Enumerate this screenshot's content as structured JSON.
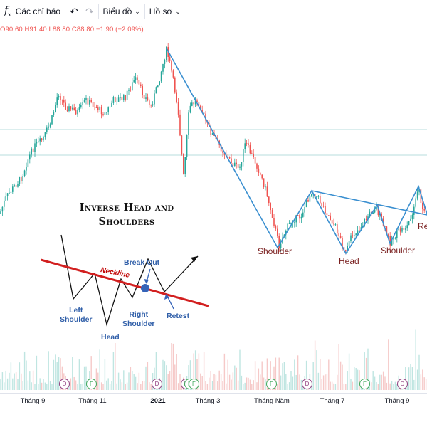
{
  "toolbar": {
    "indicators_label": "Các chỉ báo",
    "chart_type_label": "Biểu đồ",
    "profile_label": "Hồ sơ"
  },
  "ohlc": {
    "open": "O90.60",
    "high": "H91.40",
    "low": "L88.80",
    "close": "C88.80",
    "change": "−1.90 (−2.09%)"
  },
  "time_axis": [
    "Tháng 9",
    "Tháng 11",
    "2021",
    "Tháng 3",
    "Tháng Năm",
    "Tháng 7",
    "Tháng 9"
  ],
  "pattern_labels": {
    "left_shoulder": "Shoulder",
    "head": "Head",
    "right_shoulder": "Shoulder",
    "cutoff": "Re"
  },
  "inset": {
    "title_line1": "Inverse Head and",
    "title_line2": "Shoulders",
    "left_shoulder": "Left\nShoulder",
    "head": "Head",
    "right_shoulder": "Right\nShoulder",
    "neckline": "Neckline",
    "break_out": "Break Out",
    "retest": "Retest"
  },
  "event_badges": [
    "D",
    "F",
    "D",
    "D",
    "F",
    "F",
    "F",
    "D",
    "F",
    "D"
  ],
  "colors": {
    "up": "#26a69a",
    "down": "#ef5350",
    "pattern_line": "#3a8fd0",
    "neckline": "#d21f1f",
    "label": "#2f5ea8"
  }
}
